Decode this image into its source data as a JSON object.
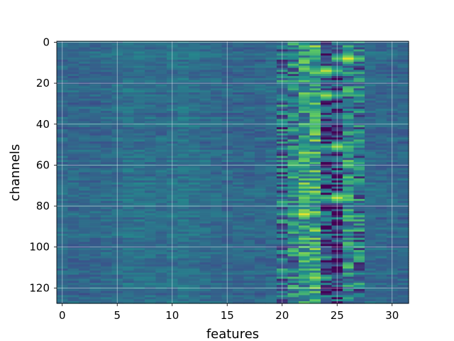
{
  "chart_data": {
    "type": "heatmap",
    "xlabel": "features",
    "ylabel": "channels",
    "x_range": [
      -0.5,
      31.5
    ],
    "y_range": [
      -0.5,
      127.5
    ],
    "y_inverted": true,
    "columns": 32,
    "rows": 128,
    "x_ticks": [
      0,
      5,
      10,
      15,
      20,
      25,
      30
    ],
    "y_ticks": [
      0,
      20,
      40,
      60,
      80,
      100,
      120
    ],
    "x_tick_labels": [
      "0",
      "5",
      "10",
      "15",
      "20",
      "25",
      "30"
    ],
    "y_tick_labels": [
      "0",
      "20",
      "40",
      "60",
      "80",
      "100",
      "120"
    ],
    "grid": true,
    "colormap": "viridis",
    "description_of_values": "Columns 0–19 are mostly low values (dark blue) with faint horizontal streaks of slightly higher values; columns 20–27 contain strong contrast with bright yellow/green peaks (around features 22–26) interleaved with very dark purple valleys (around features 24–25); columns 28–31 return to low values.",
    "column_profile_mean": [
      0.34,
      0.33,
      0.33,
      0.33,
      0.34,
      0.35,
      0.37,
      0.37,
      0.36,
      0.35,
      0.37,
      0.38,
      0.37,
      0.35,
      0.34,
      0.33,
      0.33,
      0.33,
      0.33,
      0.34,
      0.36,
      0.45,
      0.55,
      0.6,
      0.32,
      0.3,
      0.46,
      0.38,
      0.34,
      0.33,
      0.33,
      0.33
    ],
    "bright_peaks": [
      {
        "feature": 26,
        "channel": 8,
        "value": 0.95
      },
      {
        "feature": 24,
        "channel": 14,
        "value": 0.9
      },
      {
        "feature": 24,
        "channel": 26,
        "value": 0.85
      },
      {
        "feature": 25,
        "channel": 51,
        "value": 0.85
      },
      {
        "feature": 25,
        "channel": 76,
        "value": 0.9
      },
      {
        "feature": 22,
        "channel": 84,
        "value": 0.95
      },
      {
        "feature": 23,
        "channel": 115,
        "value": 0.85
      }
    ],
    "colors": {
      "low": "#440154",
      "mid_low": "#3b528b",
      "mid": "#21918c",
      "mid_high": "#5ec962",
      "high": "#fde725",
      "grid": "#ffffff"
    }
  }
}
